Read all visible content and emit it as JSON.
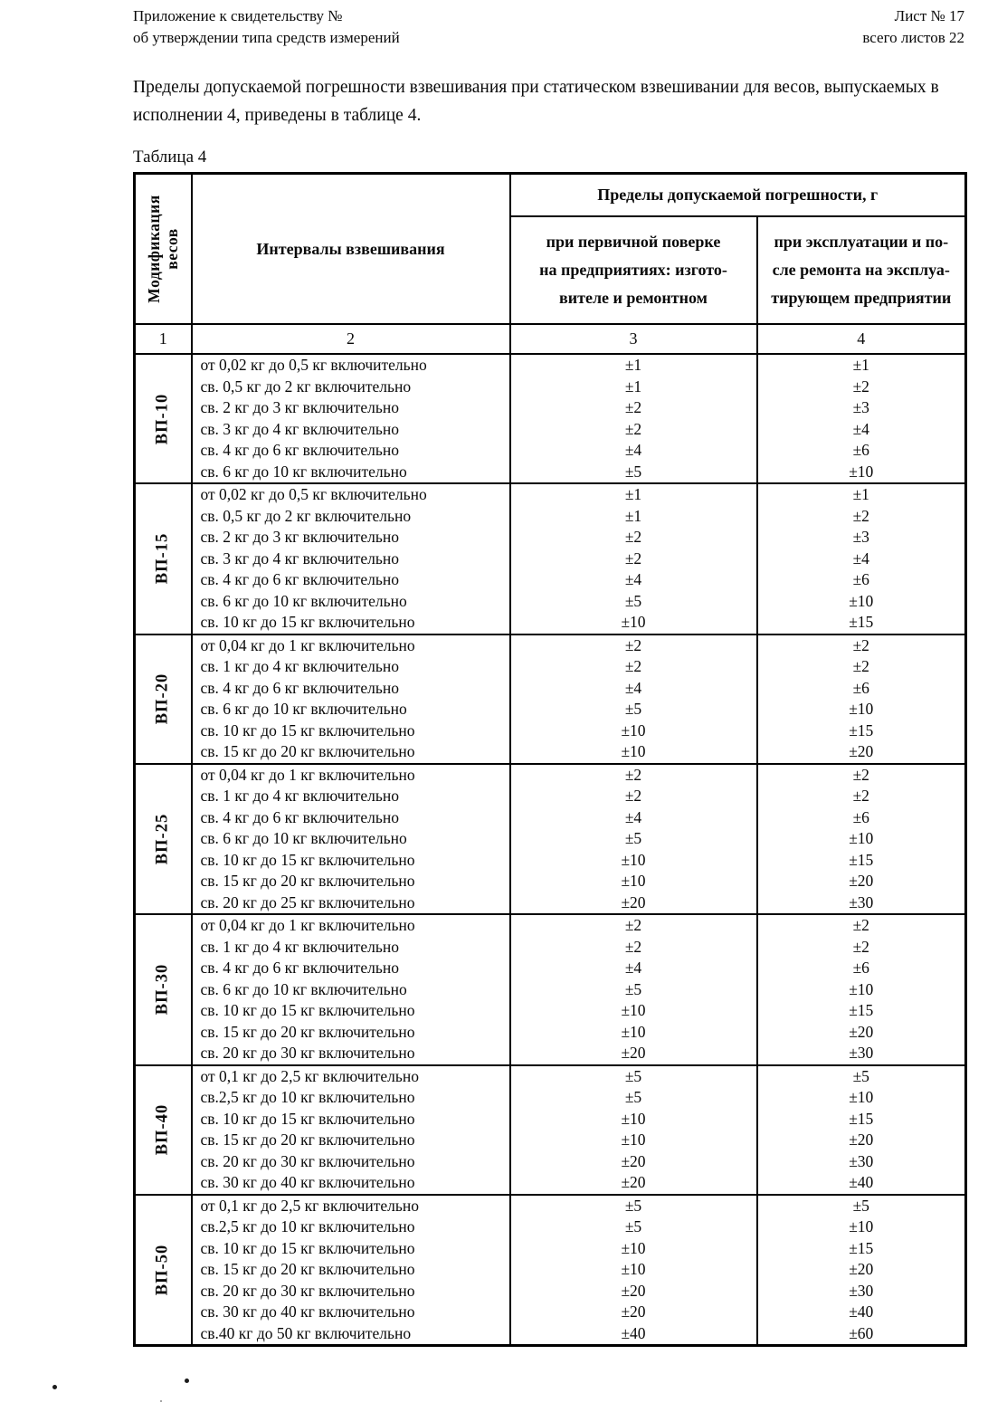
{
  "page": {
    "header": {
      "left_line1": "Приложение к свидетельству №",
      "left_line2": "об утверждении типа средств измерений",
      "right_line1": "Лист № 17",
      "right_line2": "всего листов 22"
    },
    "intro": "Пределы допускаемой погрешности взвешивания при статическом взвешивании для весов, выпускаемых в исполнении 4, приведены в таблице 4.",
    "table_caption": "Таблица 4"
  },
  "table": {
    "col_headers": {
      "modification": "Модификация\nвесов",
      "intervals": "Интервалы взвешивания",
      "limits_group": "Пределы допускаемой погрешности, г",
      "primary": "при первичной поверке\nна предприятиях: изгото-\nвителе и ремонтном",
      "operation": "при эксплуатации и по-\nсле ремонта на эксплуа-\nтирующем предприятии"
    },
    "col_numbers": [
      "1",
      "2",
      "3",
      "4"
    ],
    "sections": [
      {
        "modification": "ВП-10",
        "rows": [
          {
            "interval": "от 0,02 кг до 0,5 кг включительно",
            "primary": "±1",
            "operation": "±1"
          },
          {
            "interval": "св. 0,5 кг до 2 кг включительно",
            "primary": "±1",
            "operation": "±2"
          },
          {
            "interval": "св. 2 кг до 3 кг включительно",
            "primary": "±2",
            "operation": "±3"
          },
          {
            "interval": "св. 3 кг до 4 кг включительно",
            "primary": "±2",
            "operation": "±4"
          },
          {
            "interval": "св. 4 кг до 6 кг включительно",
            "primary": "±4",
            "operation": "±6"
          },
          {
            "interval": "св. 6 кг до 10 кг включительно",
            "primary": "±5",
            "operation": "±10"
          }
        ]
      },
      {
        "modification": "ВП-15",
        "rows": [
          {
            "interval": "от 0,02 кг до 0,5 кг включительно",
            "primary": "±1",
            "operation": "±1"
          },
          {
            "interval": "св. 0,5 кг до 2 кг включительно",
            "primary": "±1",
            "operation": "±2"
          },
          {
            "interval": "св. 2 кг до 3 кг включительно",
            "primary": "±2",
            "operation": "±3"
          },
          {
            "interval": "св. 3 кг до 4 кг включительно",
            "primary": "±2",
            "operation": "±4"
          },
          {
            "interval": "св. 4 кг до 6 кг включительно",
            "primary": "±4",
            "operation": "±6"
          },
          {
            "interval": "св. 6 кг до 10 кг включительно",
            "primary": "±5",
            "operation": "±10"
          },
          {
            "interval": "св. 10 кг до 15 кг включительно",
            "primary": "±10",
            "operation": "±15"
          }
        ]
      },
      {
        "modification": "ВП-20",
        "rows": [
          {
            "interval": "от 0,04 кг до 1 кг включительно",
            "primary": "±2",
            "operation": "±2"
          },
          {
            "interval": "св. 1 кг до 4 кг включительно",
            "primary": "±2",
            "operation": "±2"
          },
          {
            "interval": "св. 4 кг до 6 кг включительно",
            "primary": "±4",
            "operation": "±6"
          },
          {
            "interval": "св. 6 кг до 10 кг включительно",
            "primary": "±5",
            "operation": "±10"
          },
          {
            "interval": "св. 10 кг до 15 кг включительно",
            "primary": "±10",
            "operation": "±15"
          },
          {
            "interval": "св. 15 кг до 20 кг включительно",
            "primary": "±10",
            "operation": "±20"
          }
        ]
      },
      {
        "modification": "ВП-25",
        "rows": [
          {
            "interval": "от 0,04 кг до 1 кг включительно",
            "primary": "±2",
            "operation": "±2"
          },
          {
            "interval": "св. 1 кг до 4 кг включительно",
            "primary": "±2",
            "operation": "±2"
          },
          {
            "interval": "св. 4 кг до 6 кг включительно",
            "primary": "±4",
            "operation": "±6"
          },
          {
            "interval": "св. 6 кг до 10 кг включительно",
            "primary": "±5",
            "operation": "±10"
          },
          {
            "interval": "св. 10 кг до 15 кг включительно",
            "primary": "±10",
            "operation": "±15"
          },
          {
            "interval": "св. 15 кг до 20 кг включительно",
            "primary": "±10",
            "operation": "±20"
          },
          {
            "interval": "св. 20 кг до 25 кг включительно",
            "primary": "±20",
            "operation": "±30"
          }
        ]
      },
      {
        "modification": "ВП-30",
        "rows": [
          {
            "interval": "от 0,04 кг до 1 кг включительно",
            "primary": "±2",
            "operation": "±2"
          },
          {
            "interval": "св. 1 кг до 4 кг включительно",
            "primary": "±2",
            "operation": "±2"
          },
          {
            "interval": "св. 4 кг до 6 кг включительно",
            "primary": "±4",
            "operation": "±6"
          },
          {
            "interval": "св. 6 кг до 10 кг включительно",
            "primary": "±5",
            "operation": "±10"
          },
          {
            "interval": "св. 10 кг до 15 кг включительно",
            "primary": "±10",
            "operation": "±15"
          },
          {
            "interval": "св. 15 кг до 20 кг включительно",
            "primary": "±10",
            "operation": "±20"
          },
          {
            "interval": "св. 20 кг до 30 кг включительно",
            "primary": "±20",
            "operation": "±30"
          }
        ]
      },
      {
        "modification": "ВП-40",
        "rows": [
          {
            "interval": "от 0,1 кг до 2,5 кг включительно",
            "primary": "±5",
            "operation": "±5"
          },
          {
            "interval": "св.2,5 кг до 10 кг включительно",
            "primary": "±5",
            "operation": "±10"
          },
          {
            "interval": "св. 10 кг до 15 кг включительно",
            "primary": "±10",
            "operation": "±15"
          },
          {
            "interval": "св. 15 кг до 20 кг включительно",
            "primary": "±10",
            "operation": "±20"
          },
          {
            "interval": "св. 20 кг до 30 кг включительно",
            "primary": "±20",
            "operation": "±30"
          },
          {
            "interval": "св. 30 кг до 40 кг включительно",
            "primary": "±20",
            "operation": "±40"
          }
        ]
      },
      {
        "modification": "ВП-50",
        "rows": [
          {
            "interval": "от 0,1 кг до 2,5 кг включительно",
            "primary": "±5",
            "operation": "±5"
          },
          {
            "interval": "св.2,5 кг до 10 кг включительно",
            "primary": "±5",
            "operation": "±10"
          },
          {
            "interval": "св. 10 кг до 15 кг включительно",
            "primary": "±10",
            "operation": "±15"
          },
          {
            "interval": "св. 15 кг до 20 кг включительно",
            "primary": "±10",
            "operation": "±20"
          },
          {
            "interval": "св. 20 кг до 30 кг включительно",
            "primary": "±20",
            "operation": "±30"
          },
          {
            "interval": "св. 30 кг до 40 кг включительно",
            "primary": "±20",
            "operation": "±40"
          },
          {
            "interval": "св.40 кг до 50 кг включительно",
            "primary": "±40",
            "operation": "±60"
          }
        ]
      }
    ]
  }
}
